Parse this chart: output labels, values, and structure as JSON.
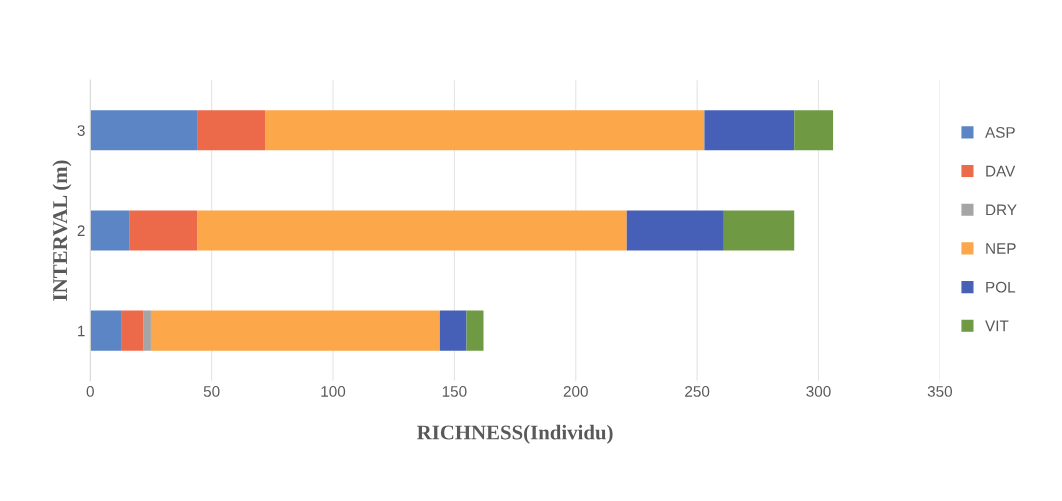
{
  "chart_data": {
    "type": "bar",
    "orientation": "horizontal",
    "stacked": true,
    "xlabel": "RICHNESS(Individu)",
    "ylabel": "INTERVAL (m)",
    "categories": [
      "3",
      "2",
      "1"
    ],
    "series": [
      {
        "name": "ASP",
        "color": "#5b85c5",
        "values": [
          44,
          16,
          13
        ]
      },
      {
        "name": "DAV",
        "color": "#ec6a4a",
        "values": [
          28,
          28,
          9
        ]
      },
      {
        "name": "DRY",
        "color": "#a5a5a5",
        "values": [
          0,
          0,
          3
        ]
      },
      {
        "name": "NEP",
        "color": "#fca74a",
        "values": [
          181,
          177,
          119
        ]
      },
      {
        "name": "POL",
        "color": "#4660b8",
        "values": [
          37,
          40,
          11
        ]
      },
      {
        "name": "VIT",
        "color": "#6f9a43",
        "values": [
          16,
          29,
          7
        ]
      }
    ],
    "xlim": [
      0,
      350
    ],
    "xticks": [
      0,
      50,
      100,
      150,
      200,
      250,
      300,
      350
    ],
    "grid": "x",
    "legend": "right"
  }
}
